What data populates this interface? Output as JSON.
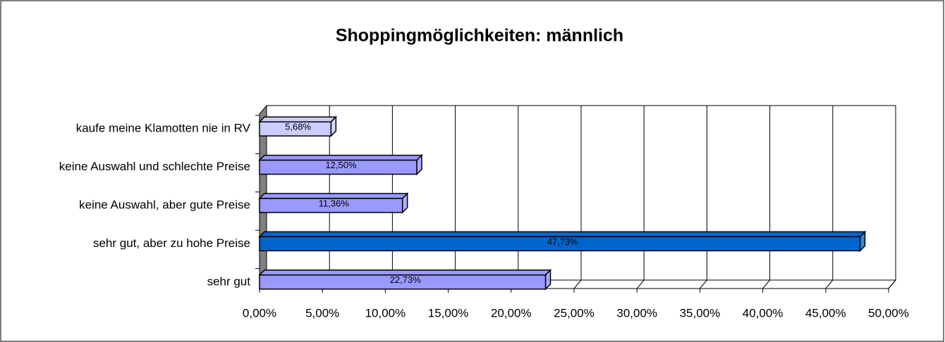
{
  "chart_data": {
    "type": "bar",
    "orientation": "horizontal",
    "title": "Shoppingmöglichkeiten: männlich",
    "categories": [
      "kaufe meine Klamotten nie in RV",
      "keine Auswahl und schlechte Preise",
      "keine Auswahl, aber gute Preise",
      "sehr gut, aber zu hohe Preise",
      "sehr gut"
    ],
    "values": [
      5.68,
      12.5,
      11.36,
      47.73,
      22.73
    ],
    "value_labels": [
      "5,68%",
      "12,50%",
      "11,36%",
      "47,73%",
      "22,73%"
    ],
    "colors": [
      "#ccccff",
      "#9999ff",
      "#9999ff",
      "#0066cc",
      "#9999ff"
    ],
    "xlim": [
      0,
      50
    ],
    "xticks": [
      {
        "value": 0,
        "label": "0,00%"
      },
      {
        "value": 5,
        "label": "5,00%"
      },
      {
        "value": 10,
        "label": "10,00%"
      },
      {
        "value": 15,
        "label": "15,00%"
      },
      {
        "value": 20,
        "label": "20,00%"
      },
      {
        "value": 25,
        "label": "25,00%"
      },
      {
        "value": 30,
        "label": "30,00%"
      },
      {
        "value": 35,
        "label": "35,00%"
      },
      {
        "value": 40,
        "label": "40,00%"
      },
      {
        "value": 45,
        "label": "45,00%"
      },
      {
        "value": 50,
        "label": "50,00%"
      }
    ],
    "grid": true
  }
}
